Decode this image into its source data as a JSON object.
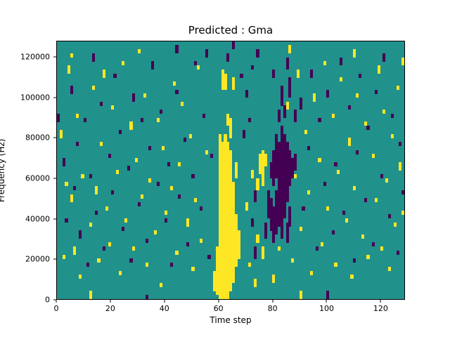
{
  "chart_data": {
    "type": "heatmap",
    "title": "Predicted : Gma",
    "xlabel": "Time step",
    "ylabel": "Frequency (Hz)",
    "xlim": [
      0,
      129
    ],
    "ylim": [
      0,
      128000
    ],
    "grid_cols": 129,
    "grid_rows": 64,
    "freq_bin_hz": 2000,
    "x_ticks": [
      0,
      20,
      40,
      60,
      80,
      100,
      120
    ],
    "x_tick_labels": [
      "0",
      "20",
      "40",
      "60",
      "80",
      "100",
      "120"
    ],
    "y_ticks": [
      0,
      20000,
      40000,
      60000,
      80000,
      100000,
      120000
    ],
    "y_tick_labels": [
      "0",
      "20000",
      "40000",
      "60000",
      "80000",
      "100000",
      "120000"
    ],
    "legend": "none",
    "grid": false,
    "colors": {
      "background": "#21918c",
      "high": "#fde725",
      "low": "#440154",
      "frame": "#000000",
      "figure_bg": "#ffffff"
    },
    "yellow_runs": [
      [
        1,
        40,
        41
      ],
      [
        2,
        10,
        10
      ],
      [
        3,
        28,
        28
      ],
      [
        4,
        56,
        57
      ],
      [
        5,
        24,
        25
      ],
      [
        5,
        60,
        60
      ],
      [
        6,
        11,
        12
      ],
      [
        7,
        45,
        45
      ],
      [
        8,
        5,
        5
      ],
      [
        9,
        30,
        30
      ],
      [
        12,
        0,
        1
      ],
      [
        12,
        18,
        18
      ],
      [
        13,
        52,
        52
      ],
      [
        14,
        26,
        27
      ],
      [
        15,
        9,
        9
      ],
      [
        16,
        38,
        38
      ],
      [
        17,
        55,
        56
      ],
      [
        18,
        22,
        22
      ],
      [
        19,
        13,
        13
      ],
      [
        20,
        47,
        47
      ],
      [
        22,
        31,
        31
      ],
      [
        23,
        6,
        6
      ],
      [
        24,
        58,
        58
      ],
      [
        25,
        19,
        19
      ],
      [
        27,
        42,
        43
      ],
      [
        28,
        12,
        12
      ],
      [
        29,
        34,
        34
      ],
      [
        30,
        61,
        61
      ],
      [
        31,
        25,
        25
      ],
      [
        32,
        50,
        50
      ],
      [
        33,
        8,
        8
      ],
      [
        34,
        29,
        29
      ],
      [
        36,
        16,
        16
      ],
      [
        37,
        44,
        44
      ],
      [
        38,
        3,
        3
      ],
      [
        39,
        37,
        37
      ],
      [
        40,
        21,
        21
      ],
      [
        42,
        27,
        27
      ],
      [
        43,
        53,
        53
      ],
      [
        44,
        11,
        11
      ],
      [
        45,
        33,
        33
      ],
      [
        46,
        48,
        48
      ],
      [
        48,
        18,
        19
      ],
      [
        49,
        40,
        40
      ],
      [
        50,
        7,
        7
      ],
      [
        51,
        24,
        24
      ],
      [
        52,
        57,
        57
      ],
      [
        53,
        14,
        14
      ],
      [
        55,
        36,
        36
      ],
      [
        58,
        2,
        6
      ],
      [
        59,
        1,
        12
      ],
      [
        60,
        0,
        40
      ],
      [
        61,
        0,
        38
      ],
      [
        61,
        52,
        56
      ],
      [
        62,
        0,
        40
      ],
      [
        62,
        52,
        55
      ],
      [
        63,
        0,
        38
      ],
      [
        63,
        43,
        45
      ],
      [
        64,
        2,
        36
      ],
      [
        64,
        40,
        44
      ],
      [
        65,
        4,
        28
      ],
      [
        65,
        52,
        54
      ],
      [
        66,
        8,
        20
      ],
      [
        66,
        30,
        33
      ],
      [
        67,
        10,
        16
      ],
      [
        70,
        22,
        23
      ],
      [
        71,
        8,
        8
      ],
      [
        72,
        30,
        31
      ],
      [
        73,
        3,
        4
      ],
      [
        74,
        14,
        15
      ],
      [
        74,
        27,
        29
      ],
      [
        75,
        31,
        35
      ],
      [
        76,
        10,
        12
      ],
      [
        76,
        28,
        36
      ],
      [
        77,
        33,
        35
      ],
      [
        80,
        4,
        5
      ],
      [
        82,
        12,
        12
      ],
      [
        84,
        20,
        20
      ],
      [
        85,
        47,
        48
      ],
      [
        86,
        61,
        62
      ],
      [
        87,
        9,
        9
      ],
      [
        88,
        30,
        30
      ],
      [
        89,
        55,
        56
      ],
      [
        90,
        0,
        1
      ],
      [
        90,
        17,
        17
      ],
      [
        92,
        41,
        41
      ],
      [
        93,
        26,
        26
      ],
      [
        94,
        6,
        6
      ],
      [
        95,
        49,
        50
      ],
      [
        97,
        34,
        34
      ],
      [
        98,
        13,
        13
      ],
      [
        99,
        58,
        58
      ],
      [
        100,
        22,
        22
      ],
      [
        102,
        45,
        45
      ],
      [
        103,
        8,
        8
      ],
      [
        104,
        31,
        31
      ],
      [
        105,
        54,
        54
      ],
      [
        107,
        19,
        19
      ],
      [
        108,
        38,
        39
      ],
      [
        109,
        5,
        5
      ],
      [
        110,
        27,
        27
      ],
      [
        110,
        60,
        61
      ],
      [
        111,
        50,
        50
      ],
      [
        113,
        15,
        15
      ],
      [
        114,
        43,
        43
      ],
      [
        115,
        10,
        10
      ],
      [
        117,
        35,
        35
      ],
      [
        118,
        24,
        24
      ],
      [
        119,
        56,
        57
      ],
      [
        120,
        12,
        12
      ],
      [
        121,
        46,
        46
      ],
      [
        122,
        29,
        29
      ],
      [
        123,
        7,
        7
      ],
      [
        124,
        40,
        40
      ],
      [
        125,
        18,
        18
      ],
      [
        126,
        52,
        52
      ],
      [
        127,
        32,
        33
      ],
      [
        128,
        21,
        21
      ],
      [
        128,
        58,
        59
      ]
    ],
    "purple_runs": [
      [
        0,
        44,
        45
      ],
      [
        2,
        33,
        34
      ],
      [
        3,
        19,
        19
      ],
      [
        5,
        51,
        52
      ],
      [
        6,
        27,
        27
      ],
      [
        7,
        38,
        38
      ],
      [
        8,
        15,
        16
      ],
      [
        10,
        44,
        44
      ],
      [
        11,
        8,
        8
      ],
      [
        12,
        30,
        30
      ],
      [
        13,
        59,
        60
      ],
      [
        14,
        21,
        21
      ],
      [
        16,
        48,
        48
      ],
      [
        17,
        12,
        12
      ],
      [
        19,
        35,
        35
      ],
      [
        20,
        26,
        26
      ],
      [
        21,
        55,
        55
      ],
      [
        23,
        41,
        41
      ],
      [
        24,
        17,
        17
      ],
      [
        26,
        32,
        32
      ],
      [
        27,
        9,
        9
      ],
      [
        28,
        49,
        50
      ],
      [
        30,
        23,
        23
      ],
      [
        31,
        44,
        44
      ],
      [
        33,
        0,
        0
      ],
      [
        33,
        14,
        14
      ],
      [
        34,
        37,
        37
      ],
      [
        35,
        57,
        58
      ],
      [
        37,
        28,
        28
      ],
      [
        38,
        46,
        46
      ],
      [
        40,
        19,
        19
      ],
      [
        41,
        33,
        33
      ],
      [
        42,
        8,
        8
      ],
      [
        44,
        51,
        51
      ],
      [
        44,
        61,
        62
      ],
      [
        45,
        25,
        25
      ],
      [
        47,
        39,
        39
      ],
      [
        48,
        13,
        13
      ],
      [
        50,
        30,
        30
      ],
      [
        51,
        58,
        58
      ],
      [
        53,
        22,
        22
      ],
      [
        54,
        45,
        45
      ],
      [
        56,
        10,
        10
      ],
      [
        57,
        35,
        35
      ],
      [
        55,
        60,
        61
      ],
      [
        63,
        59,
        60
      ],
      [
        65,
        62,
        63
      ],
      [
        68,
        55,
        55
      ],
      [
        69,
        40,
        41
      ],
      [
        70,
        50,
        51
      ],
      [
        71,
        44,
        44
      ],
      [
        72,
        18,
        19
      ],
      [
        72,
        57,
        57
      ],
      [
        73,
        10,
        12
      ],
      [
        73,
        24,
        26
      ],
      [
        74,
        60,
        61
      ],
      [
        77,
        15,
        18
      ],
      [
        78,
        20,
        26
      ],
      [
        79,
        17,
        24
      ],
      [
        79,
        30,
        33
      ],
      [
        80,
        14,
        22
      ],
      [
        80,
        28,
        36
      ],
      [
        80,
        55,
        56
      ],
      [
        81,
        16,
        26
      ],
      [
        81,
        30,
        40
      ],
      [
        82,
        18,
        38
      ],
      [
        82,
        44,
        46
      ],
      [
        83,
        15,
        42
      ],
      [
        83,
        48,
        52
      ],
      [
        84,
        20,
        40
      ],
      [
        84,
        45,
        47
      ],
      [
        85,
        14,
        18
      ],
      [
        85,
        24,
        38
      ],
      [
        85,
        57,
        59
      ],
      [
        86,
        18,
        22
      ],
      [
        86,
        28,
        36
      ],
      [
        86,
        50,
        54
      ],
      [
        87,
        30,
        34
      ],
      [
        88,
        32,
        35
      ],
      [
        88,
        44,
        46
      ],
      [
        90,
        47,
        49
      ],
      [
        91,
        22,
        22
      ],
      [
        93,
        37,
        37
      ],
      [
        94,
        55,
        56
      ],
      [
        96,
        12,
        12
      ],
      [
        97,
        44,
        44
      ],
      [
        99,
        28,
        28
      ],
      [
        100,
        0,
        1
      ],
      [
        100,
        50,
        51
      ],
      [
        102,
        16,
        16
      ],
      [
        103,
        33,
        33
      ],
      [
        105,
        58,
        59
      ],
      [
        106,
        21,
        21
      ],
      [
        108,
        47,
        47
      ],
      [
        110,
        9,
        9
      ],
      [
        111,
        36,
        36
      ],
      [
        112,
        55,
        55
      ],
      [
        114,
        24,
        24
      ],
      [
        115,
        42,
        42
      ],
      [
        117,
        13,
        13
      ],
      [
        118,
        51,
        51
      ],
      [
        120,
        30,
        30
      ],
      [
        121,
        59,
        60
      ],
      [
        123,
        20,
        20
      ],
      [
        124,
        45,
        45
      ],
      [
        126,
        11,
        11
      ],
      [
        127,
        38,
        38
      ],
      [
        128,
        26,
        26
      ]
    ]
  }
}
